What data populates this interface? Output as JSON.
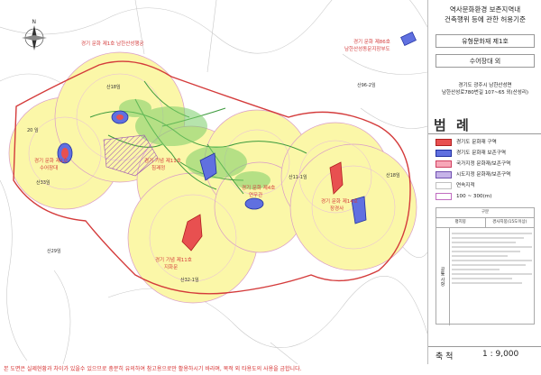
{
  "panel": {
    "heading_line1": "역사문화환경 보존지역내",
    "heading_line2": "건축행위 등에 관한 허용기준",
    "type": "유형문화재 제1호",
    "name": "수어장대 외",
    "address_line1": "경기도 광주시 남한산성면",
    "address_line2": "남한산성로780번길 107~65 외(산성리)",
    "legend_title": "범 례",
    "legend": [
      {
        "label": "경기도 문화재 구역",
        "color": "#e85050",
        "border": "#b02020"
      },
      {
        "label": "경기도 문화재 보존구역",
        "color": "#6070e0",
        "border": "#2030a0"
      },
      {
        "label": "국가지정 문화재/보존구역",
        "color": "#f7a7b8",
        "border": "#d04060"
      },
      {
        "label": "시도지정 문화재/보존구역",
        "color": "#c6b3e8",
        "border": "#7050b0"
      },
      {
        "label": "연속지적",
        "color": "#ffffff",
        "border": "#c0c0c0"
      },
      {
        "label": "100 ~ 300(m)",
        "color": "#ffffff",
        "border": "#c06cc0"
      }
    ],
    "table_header": "구분",
    "table_col1": "평지붕",
    "table_col2": "경사지붕(15도이상)",
    "table_side": "공통 사항",
    "scale_label": "축 척",
    "scale_value": "1 : 9,000"
  },
  "map_labels": {
    "heritage_top": "경기 문화 제1호 남한산성행궁",
    "heritage_top_right_1": "경기 문화 제86호",
    "heritage_top_right_2": "남한산성동문지장부도",
    "heritage_left_1": "경기 문화 제1호",
    "heritage_left_2": "수어장대",
    "heritage_center_1": "경기 기념 제11호",
    "heritage_center_2": "침괘정",
    "heritage_mid_1": "경기 문화 제4호",
    "heritage_mid_2": "연무관",
    "heritage_right_1": "경기 문화 제14호",
    "heritage_right_2": "장경사",
    "heritage_bottom_1": "경기 기념 제11호",
    "heritage_bottom_2": "지화문",
    "mountains": [
      "산18임",
      "산33임",
      "산29임",
      "산32-1임",
      "산11-1임",
      "산18임",
      "산96-2임"
    ],
    "plot_20": "20 임"
  },
  "footer_note": "본 도면은 실제현황과 차이가 있을수 있으므로 충분히 유의하여 참고용으로만 활용하시기 바라며, 목적 외 타용도의 사용을 금합니다."
}
